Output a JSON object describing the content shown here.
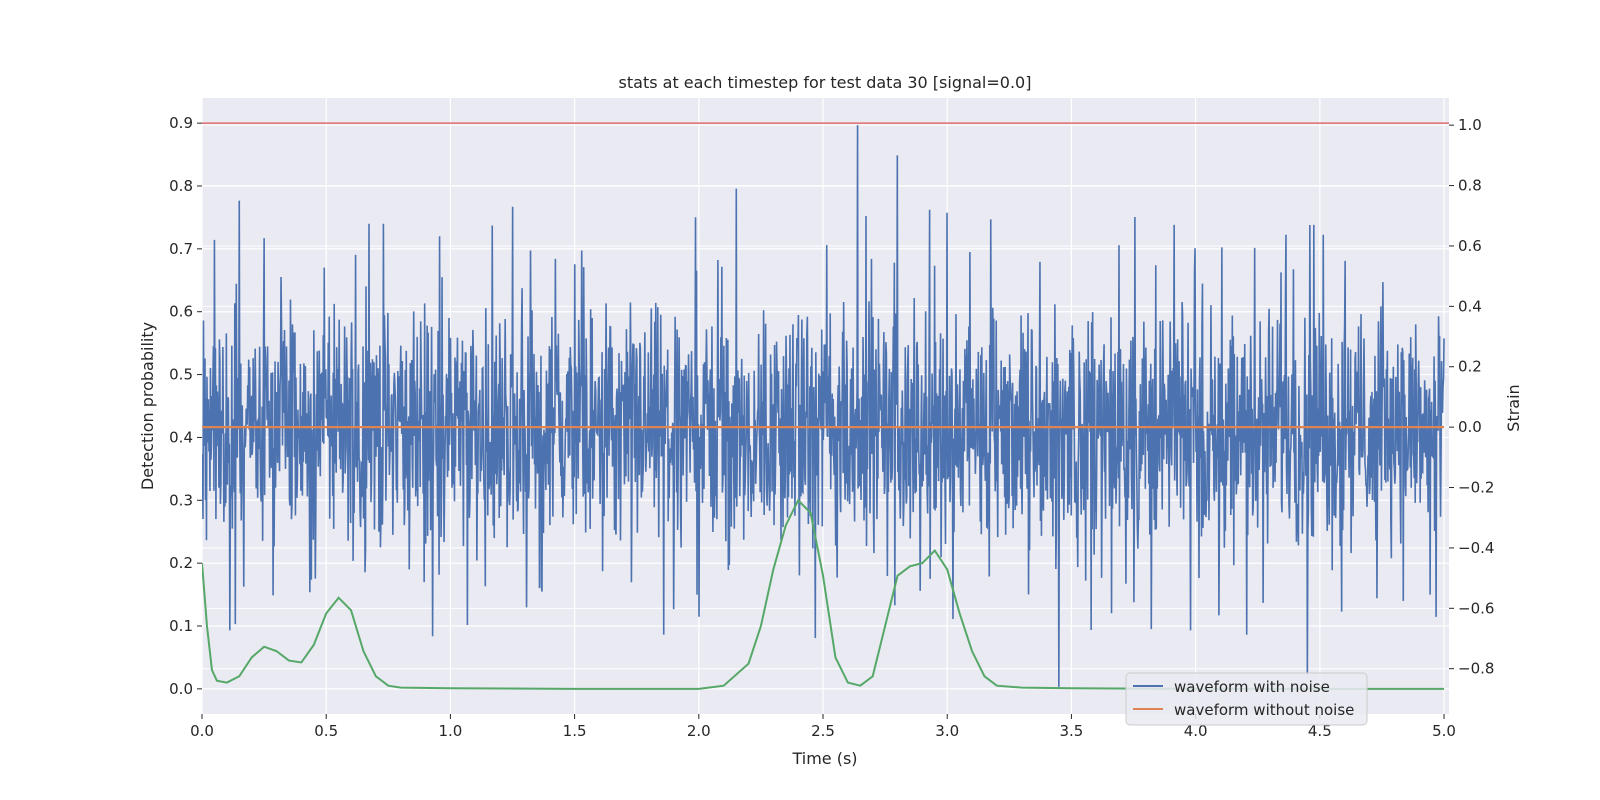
{
  "chart_data": {
    "type": "line",
    "title": "stats at each timestep for test data 30 [signal=0.0]",
    "xlabel": "Time (s)",
    "ylabel_left": "Detection probability",
    "ylabel_right": "Strain",
    "xlim": [
      0.0,
      5.02
    ],
    "ylim_left": [
      -0.04,
      0.94
    ],
    "ylim_right": [
      -0.95,
      1.09
    ],
    "x_ticks": [
      "0.0",
      "0.5",
      "1.0",
      "1.5",
      "2.0",
      "2.5",
      "3.0",
      "3.5",
      "4.0",
      "4.5",
      "5.0"
    ],
    "y_ticks_left": [
      "0.0",
      "0.1",
      "0.2",
      "0.3",
      "0.4",
      "0.5",
      "0.6",
      "0.7",
      "0.8",
      "0.9"
    ],
    "y_ticks_right": [
      "−0.8",
      "−0.6",
      "−0.4",
      "−0.2",
      "0.0",
      "0.2",
      "0.4",
      "0.6",
      "0.8",
      "1.0"
    ],
    "grid": true,
    "legend_position": "lower-right",
    "threshold": {
      "axis": "left",
      "y": 0.9,
      "color": "#d9534f"
    },
    "series": [
      {
        "name": "waveform with noise",
        "axis": "right",
        "color": "#4c72b0",
        "description_values": {
          "mean": 0.0,
          "typical_peak": 0.6,
          "max_peak": 1.0,
          "min_trough": -0.86
        },
        "notable_peaks": [
          [
            0.05,
            0.62
          ],
          [
            0.15,
            0.75
          ],
          [
            1.25,
            0.73
          ],
          [
            2.15,
            0.79
          ],
          [
            2.64,
            1.0
          ],
          [
            2.8,
            0.9
          ],
          [
            2.93,
            0.72
          ],
          [
            3.0,
            0.71
          ],
          [
            3.45,
            -0.86
          ],
          [
            4.45,
            -0.82
          ]
        ]
      },
      {
        "name": "waveform without noise",
        "axis": "right",
        "color": "#dd8452",
        "x": [
          0.0,
          5.0
        ],
        "y": [
          0.0,
          0.0
        ]
      },
      {
        "name": "",
        "axis": "left",
        "color": "#55a868",
        "x": [
          0.0,
          0.02,
          0.04,
          0.06,
          0.1,
          0.15,
          0.2,
          0.25,
          0.3,
          0.35,
          0.4,
          0.45,
          0.5,
          0.55,
          0.6,
          0.65,
          0.7,
          0.75,
          0.8,
          1.0,
          1.5,
          2.0,
          2.1,
          2.2,
          2.25,
          2.3,
          2.35,
          2.4,
          2.45,
          2.5,
          2.55,
          2.6,
          2.65,
          2.7,
          2.75,
          2.8,
          2.85,
          2.9,
          2.95,
          3.0,
          3.05,
          3.1,
          3.15,
          3.2,
          3.3,
          3.5,
          4.0,
          4.5,
          5.0
        ],
        "y": [
          0.2,
          0.1,
          0.03,
          0.013,
          0.01,
          0.02,
          0.05,
          0.067,
          0.06,
          0.045,
          0.042,
          0.07,
          0.12,
          0.145,
          0.125,
          0.06,
          0.02,
          0.005,
          0.002,
          0.001,
          0.0,
          0.0,
          0.005,
          0.04,
          0.1,
          0.19,
          0.26,
          0.3,
          0.28,
          0.18,
          0.05,
          0.01,
          0.005,
          0.02,
          0.1,
          0.18,
          0.195,
          0.2,
          0.22,
          0.19,
          0.12,
          0.06,
          0.02,
          0.005,
          0.002,
          0.001,
          0.0,
          0.0,
          0.0
        ]
      }
    ]
  }
}
